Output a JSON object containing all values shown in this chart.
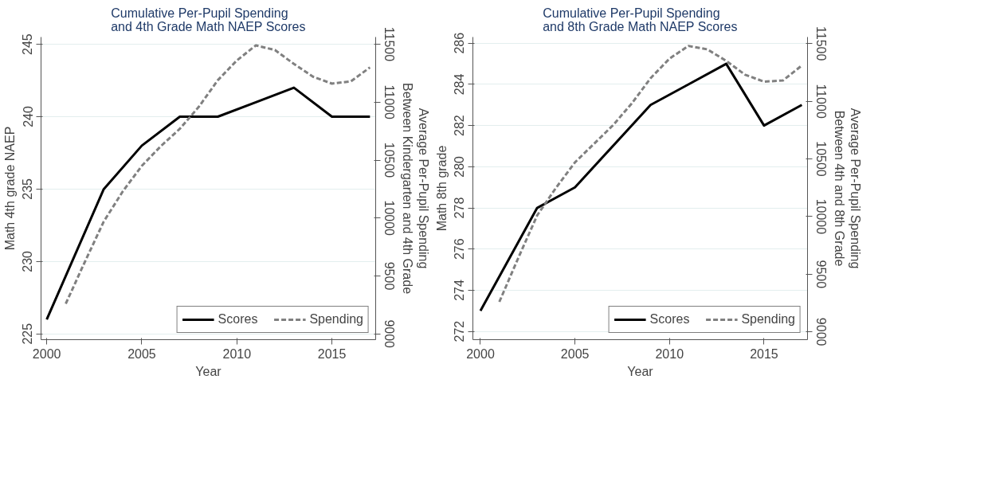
{
  "chart_data": [
    {
      "type": "line",
      "title": "Cumulative Per-Pupil Spending\nand 4th Grade Math NAEP Scores",
      "xlabel": "Year",
      "ylabel": "Math 4th grade NAEP",
      "y2label": "Average Per-Pupil Spending\nBetween Kindergarten and 4th Grade",
      "xlim": [
        1999.7,
        2017.3
      ],
      "xticks": [
        2000,
        2005,
        2010,
        2015
      ],
      "ylim": [
        224.6,
        245.5
      ],
      "yticks": [
        225,
        230,
        235,
        240,
        245
      ],
      "y2lim": [
        8950,
        11562
      ],
      "y2ticks": [
        9000,
        9500,
        10000,
        10500,
        11000,
        11500
      ],
      "grid": "y",
      "legend": "bottom",
      "series": [
        {
          "name": "Scores",
          "color": "#000000",
          "line_style": "solid",
          "x": [
            2000,
            2003,
            2005,
            2007,
            2009,
            2011,
            2013,
            2015,
            2017
          ],
          "values": [
            226,
            235,
            238,
            240,
            240,
            241,
            242,
            240,
            240
          ]
        },
        {
          "name": "Spending",
          "color": "#808080",
          "line_style": "dashed",
          "axis": "y2",
          "x": [
            2001,
            2002,
            2003,
            2004,
            2005,
            2006,
            2007,
            2008,
            2009,
            2010,
            2011,
            2012,
            2013,
            2014,
            2015,
            2016,
            2017
          ],
          "values": [
            9260,
            9620,
            9970,
            10230,
            10450,
            10620,
            10770,
            10960,
            11190,
            11360,
            11490,
            11450,
            11330,
            11220,
            11160,
            11180,
            11300
          ]
        }
      ]
    },
    {
      "type": "line",
      "title": "Cumulative Per-Pupil Spending\nand 8th Grade Math NAEP Scores",
      "xlabel": "Year",
      "ylabel": "Math 8th grade",
      "y2label": "Average Per-Pupil Spending\nBetween 4th and 8th Grade",
      "xlim": [
        1999.6,
        2017.3
      ],
      "xticks": [
        2000,
        2005,
        2010,
        2015
      ],
      "ylim": [
        271.6,
        286.3
      ],
      "yticks": [
        272,
        274,
        276,
        278,
        280,
        282,
        284,
        286
      ],
      "y2lim": [
        8932,
        11557
      ],
      "y2ticks": [
        9000,
        9500,
        10000,
        10500,
        11000,
        11500
      ],
      "grid": "y",
      "legend": "bottom",
      "series": [
        {
          "name": "Scores",
          "color": "#000000",
          "line_style": "solid",
          "x": [
            2000,
            2003,
            2005,
            2009,
            2011,
            2013,
            2015,
            2017
          ],
          "values": [
            273,
            278,
            279,
            283,
            284,
            285,
            282,
            283
          ]
        },
        {
          "name": "Spending",
          "color": "#808080",
          "line_style": "dashed",
          "axis": "y2",
          "x": [
            2001,
            2002,
            2003,
            2004,
            2005,
            2006,
            2007,
            2008,
            2009,
            2010,
            2011,
            2012,
            2013,
            2014,
            2015,
            2016,
            2017
          ],
          "values": [
            9260,
            9640,
            10010,
            10250,
            10470,
            10630,
            10790,
            10980,
            11200,
            11370,
            11480,
            11450,
            11350,
            11230,
            11170,
            11180,
            11310
          ]
        }
      ]
    }
  ]
}
